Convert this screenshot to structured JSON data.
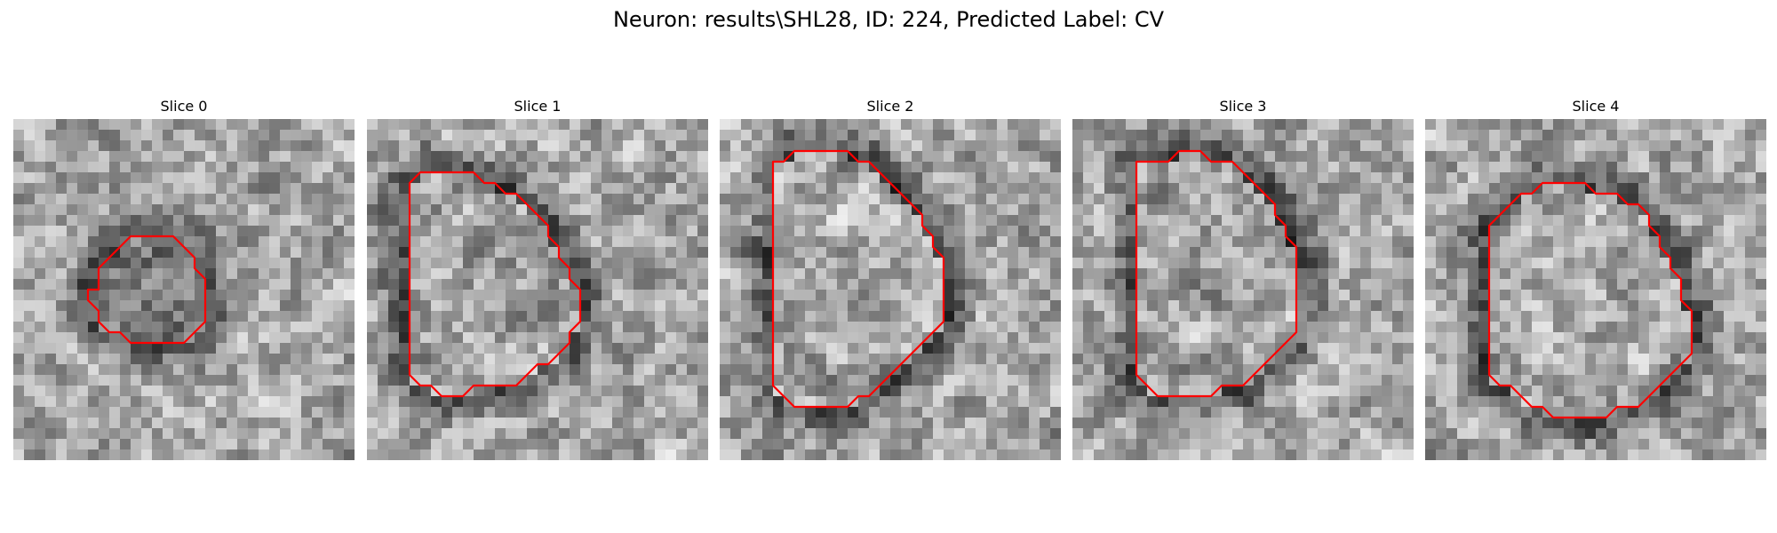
{
  "figure": {
    "title": "Neuron: results\\SHL28, ID: 224, Predicted Label: CV"
  },
  "colors": {
    "contour": "#ff0000",
    "background": "#ffffff"
  },
  "panels": [
    {
      "title": "Slice 0",
      "contour": [
        [
          12,
          11
        ],
        [
          15,
          11
        ],
        [
          16,
          12
        ],
        [
          17,
          13
        ],
        [
          17,
          14
        ],
        [
          18,
          15
        ],
        [
          18,
          19
        ],
        [
          17,
          20
        ],
        [
          16,
          21
        ],
        [
          11,
          21
        ],
        [
          10,
          20
        ],
        [
          9,
          20
        ],
        [
          8,
          19
        ],
        [
          8,
          18
        ],
        [
          7,
          17
        ],
        [
          7,
          16
        ],
        [
          8,
          16
        ],
        [
          8,
          14
        ],
        [
          9,
          13
        ],
        [
          10,
          12
        ],
        [
          11,
          11
        ]
      ]
    },
    {
      "title": "Slice 1",
      "contour": [
        [
          7,
          5
        ],
        [
          10,
          5
        ],
        [
          11,
          6
        ],
        [
          12,
          6
        ],
        [
          13,
          7
        ],
        [
          14,
          7
        ],
        [
          15,
          8
        ],
        [
          16,
          9
        ],
        [
          17,
          10
        ],
        [
          17,
          11
        ],
        [
          18,
          12
        ],
        [
          18,
          13
        ],
        [
          19,
          14
        ],
        [
          19,
          15
        ],
        [
          20,
          16
        ],
        [
          20,
          19
        ],
        [
          19,
          20
        ],
        [
          19,
          21
        ],
        [
          18,
          22
        ],
        [
          17,
          23
        ],
        [
          16,
          23
        ],
        [
          15,
          24
        ],
        [
          14,
          25
        ],
        [
          10,
          25
        ],
        [
          9,
          26
        ],
        [
          7,
          26
        ],
        [
          6,
          25
        ],
        [
          5,
          25
        ],
        [
          4,
          24
        ],
        [
          4,
          6
        ],
        [
          5,
          5
        ]
      ]
    },
    {
      "title": "Slice 2",
      "contour": [
        [
          7,
          3
        ],
        [
          12,
          3
        ],
        [
          13,
          4
        ],
        [
          14,
          4
        ],
        [
          15,
          5
        ],
        [
          16,
          6
        ],
        [
          17,
          7
        ],
        [
          18,
          8
        ],
        [
          19,
          9
        ],
        [
          19,
          10
        ],
        [
          20,
          11
        ],
        [
          20,
          12
        ],
        [
          21,
          13
        ],
        [
          21,
          19
        ],
        [
          20,
          20
        ],
        [
          19,
          21
        ],
        [
          18,
          22
        ],
        [
          17,
          23
        ],
        [
          16,
          24
        ],
        [
          15,
          25
        ],
        [
          14,
          26
        ],
        [
          13,
          26
        ],
        [
          12,
          27
        ],
        [
          7,
          27
        ],
        [
          6,
          26
        ],
        [
          5,
          25
        ],
        [
          5,
          4
        ],
        [
          6,
          4
        ]
      ]
    },
    {
      "title": "Slice 3",
      "contour": [
        [
          10,
          3
        ],
        [
          12,
          3
        ],
        [
          13,
          4
        ],
        [
          15,
          4
        ],
        [
          16,
          5
        ],
        [
          17,
          6
        ],
        [
          18,
          7
        ],
        [
          19,
          8
        ],
        [
          19,
          9
        ],
        [
          20,
          10
        ],
        [
          20,
          11
        ],
        [
          21,
          12
        ],
        [
          21,
          20
        ],
        [
          20,
          21
        ],
        [
          19,
          22
        ],
        [
          18,
          23
        ],
        [
          17,
          24
        ],
        [
          16,
          25
        ],
        [
          14,
          25
        ],
        [
          13,
          26
        ],
        [
          8,
          26
        ],
        [
          7,
          25
        ],
        [
          6,
          24
        ],
        [
          6,
          4
        ],
        [
          9,
          4
        ]
      ]
    },
    {
      "title": "Slice 4",
      "contour": [
        [
          14,
          6
        ],
        [
          15,
          6
        ],
        [
          16,
          7
        ],
        [
          18,
          7
        ],
        [
          19,
          8
        ],
        [
          20,
          8
        ],
        [
          21,
          9
        ],
        [
          21,
          10
        ],
        [
          22,
          11
        ],
        [
          22,
          12
        ],
        [
          23,
          13
        ],
        [
          23,
          14
        ],
        [
          24,
          15
        ],
        [
          24,
          17
        ],
        [
          25,
          18
        ],
        [
          25,
          22
        ],
        [
          24,
          23
        ],
        [
          23,
          24
        ],
        [
          22,
          25
        ],
        [
          21,
          26
        ],
        [
          20,
          27
        ],
        [
          18,
          27
        ],
        [
          17,
          28
        ],
        [
          12,
          28
        ],
        [
          11,
          27
        ],
        [
          10,
          27
        ],
        [
          9,
          26
        ],
        [
          8,
          25
        ],
        [
          7,
          25
        ],
        [
          6,
          24
        ],
        [
          6,
          10
        ],
        [
          7,
          9
        ],
        [
          8,
          8
        ],
        [
          9,
          7
        ],
        [
          10,
          7
        ],
        [
          11,
          6
        ]
      ]
    }
  ]
}
